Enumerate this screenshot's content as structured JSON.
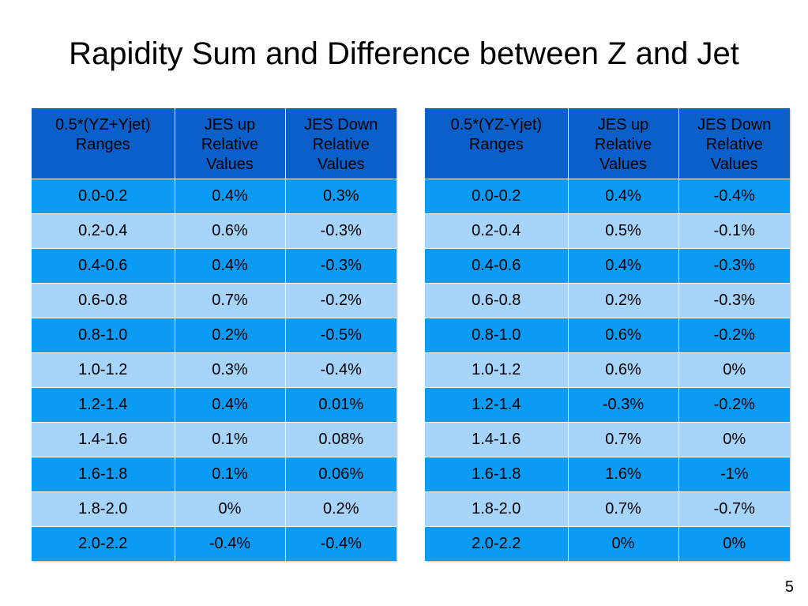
{
  "slide": {
    "title": "Rapidity Sum and Difference between Z and Jet",
    "page_number": "5"
  },
  "tables": [
    {
      "headers": [
        "0.5*(YZ+Yjet) Ranges",
        "JES up Relative Values",
        "JES Down Relative Values"
      ],
      "rows": [
        [
          "0.0-0.2",
          "0.4%",
          "0.3%"
        ],
        [
          "0.2-0.4",
          "0.6%",
          "-0.3%"
        ],
        [
          "0.4-0.6",
          "0.4%",
          "-0.3%"
        ],
        [
          "0.6-0.8",
          "0.7%",
          "-0.2%"
        ],
        [
          "0.8-1.0",
          "0.2%",
          "-0.5%"
        ],
        [
          "1.0-1.2",
          "0.3%",
          "-0.4%"
        ],
        [
          "1.2-1.4",
          "0.4%",
          "0.01%"
        ],
        [
          "1.4-1.6",
          "0.1%",
          "0.08%"
        ],
        [
          "1.6-1.8",
          "0.1%",
          "0.06%"
        ],
        [
          "1.8-2.0",
          "0%",
          "0.2%"
        ],
        [
          "2.0-2.2",
          "-0.4%",
          "-0.4%"
        ]
      ]
    },
    {
      "headers": [
        "0.5*(YZ-Yjet) Ranges",
        "JES up Relative Values",
        "JES Down Relative Values"
      ],
      "rows": [
        [
          "0.0-0.2",
          "0.4%",
          "-0.4%"
        ],
        [
          "0.2-0.4",
          "0.5%",
          "-0.1%"
        ],
        [
          "0.4-0.6",
          "0.4%",
          "-0.3%"
        ],
        [
          "0.6-0.8",
          "0.2%",
          "-0.3%"
        ],
        [
          "0.8-1.0",
          "0.6%",
          "-0.2%"
        ],
        [
          "1.0-1.2",
          "0.6%",
          "0%"
        ],
        [
          "1.2-1.4",
          "-0.3%",
          "-0.2%"
        ],
        [
          "1.4-1.6",
          "0.7%",
          "0%"
        ],
        [
          "1.6-1.8",
          "1.6%",
          "-1%"
        ],
        [
          "1.8-2.0",
          "0.7%",
          "-0.7%"
        ],
        [
          "2.0-2.2",
          "0%",
          "0%"
        ]
      ]
    }
  ],
  "colors": {
    "header_background": "#0a5fc8",
    "row_dark": "#0a9bf5",
    "row_light": "#a6d4fb"
  }
}
